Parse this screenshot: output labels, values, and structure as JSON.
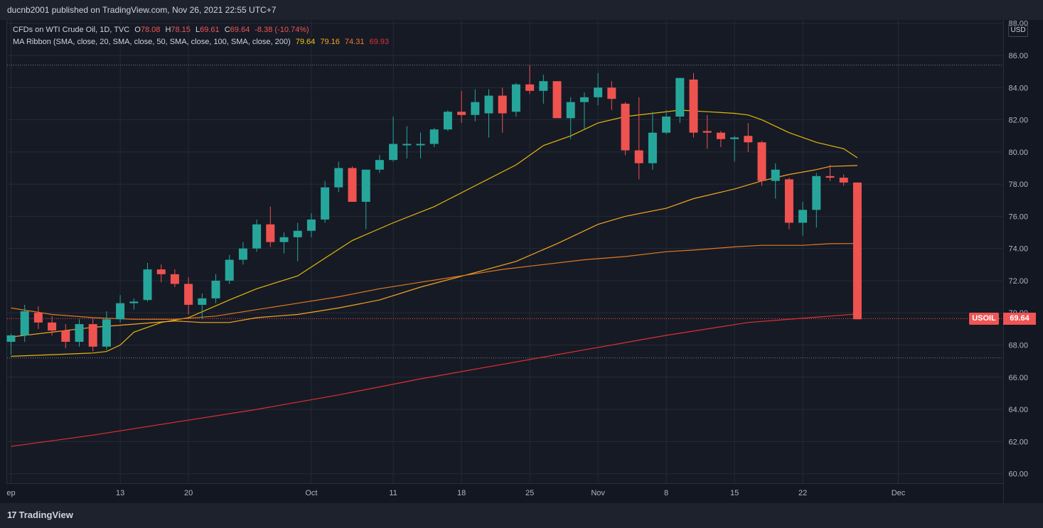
{
  "header": {
    "published_text": "ducnb2001 published on TradingView.com, Nov 26, 2021 22:55 UTC+7"
  },
  "legend": {
    "line1_name": "CFDs on WTI Crude Oil, 1D, TVC",
    "o_label": "O",
    "o_value": "78.08",
    "h_label": "H",
    "h_value": "78.15",
    "l_label": "L",
    "l_value": "69.61",
    "c_label": "C",
    "c_value": "69.64",
    "change": "-8.38 (-10.74%)",
    "line2_name": "MA Ribbon (SMA, close, 20, SMA, close, 50, SMA, close, 100, SMA, close, 200)",
    "ma20": "79.64",
    "ma50": "79.16",
    "ma100": "74.31",
    "ma200": "69.93"
  },
  "currency_label": "USD",
  "symbol_tag": "USOIL",
  "last_price_tag": "69.64",
  "footer": {
    "brand": "TradingView",
    "logo_mark": "17"
  },
  "colors": {
    "bull": "#26a69a",
    "bear": "#ef5350",
    "ma20": "#e5b80b",
    "ma50": "#f5a623",
    "ma100": "#e07a1f",
    "ma200": "#e03030",
    "background": "#161a25",
    "grid": "#262a36"
  },
  "chart_data": {
    "type": "candlestick",
    "symbol": "USOIL",
    "interval": "1D",
    "ylim": [
      59.5,
      88.5
    ],
    "y_ticks": [
      "88.00",
      "86.00",
      "84.00",
      "82.00",
      "80.00",
      "78.00",
      "76.00",
      "74.00",
      "72.00",
      "70.00",
      "68.00",
      "66.00",
      "64.00",
      "62.00",
      "60.00"
    ],
    "x_ticks": [
      {
        "label": "ep",
        "index": 0
      },
      {
        "label": "13",
        "index": 8
      },
      {
        "label": "20",
        "index": 13
      },
      {
        "label": "Oct",
        "index": 22
      },
      {
        "label": "11",
        "index": 28
      },
      {
        "label": "18",
        "index": 33
      },
      {
        "label": "25",
        "index": 38
      },
      {
        "label": "Nov",
        "index": 43
      },
      {
        "label": "8",
        "index": 48
      },
      {
        "label": "15",
        "index": 53
      },
      {
        "label": "22",
        "index": 58
      },
      {
        "label": "Dec",
        "index": 65
      }
    ],
    "candles": [
      {
        "o": 68.2,
        "h": 68.7,
        "l": 67.4,
        "c": 68.6
      },
      {
        "o": 68.6,
        "h": 70.5,
        "l": 68.2,
        "c": 70.1
      },
      {
        "o": 70.0,
        "h": 70.4,
        "l": 69.0,
        "c": 69.4
      },
      {
        "o": 69.4,
        "h": 69.8,
        "l": 68.6,
        "c": 68.9
      },
      {
        "o": 68.9,
        "h": 69.3,
        "l": 67.8,
        "c": 68.2
      },
      {
        "o": 68.2,
        "h": 69.6,
        "l": 67.9,
        "c": 69.3
      },
      {
        "o": 69.3,
        "h": 69.7,
        "l": 67.6,
        "c": 67.9
      },
      {
        "o": 67.9,
        "h": 70.1,
        "l": 67.7,
        "c": 69.6
      },
      {
        "o": 69.6,
        "h": 71.1,
        "l": 69.4,
        "c": 70.6
      },
      {
        "o": 70.6,
        "h": 70.9,
        "l": 70.2,
        "c": 70.7
      },
      {
        "o": 70.8,
        "h": 73.1,
        "l": 70.7,
        "c": 72.7
      },
      {
        "o": 72.7,
        "h": 73.0,
        "l": 71.9,
        "c": 72.4
      },
      {
        "o": 72.4,
        "h": 72.7,
        "l": 71.6,
        "c": 71.8
      },
      {
        "o": 71.8,
        "h": 72.2,
        "l": 69.9,
        "c": 70.5
      },
      {
        "o": 70.5,
        "h": 71.2,
        "l": 69.6,
        "c": 70.9
      },
      {
        "o": 70.9,
        "h": 72.4,
        "l": 70.6,
        "c": 72.0
      },
      {
        "o": 72.0,
        "h": 73.6,
        "l": 71.8,
        "c": 73.3
      },
      {
        "o": 73.3,
        "h": 74.4,
        "l": 73.0,
        "c": 74.0
      },
      {
        "o": 74.0,
        "h": 75.8,
        "l": 73.8,
        "c": 75.5
      },
      {
        "o": 75.5,
        "h": 76.6,
        "l": 74.1,
        "c": 74.4
      },
      {
        "o": 74.4,
        "h": 75.0,
        "l": 73.7,
        "c": 74.7
      },
      {
        "o": 74.7,
        "h": 75.6,
        "l": 73.2,
        "c": 75.1
      },
      {
        "o": 75.1,
        "h": 76.2,
        "l": 74.7,
        "c": 75.8
      },
      {
        "o": 75.8,
        "h": 78.2,
        "l": 75.6,
        "c": 77.8
      },
      {
        "o": 77.8,
        "h": 79.4,
        "l": 77.5,
        "c": 79.0
      },
      {
        "o": 79.0,
        "h": 79.1,
        "l": 76.9,
        "c": 76.9
      },
      {
        "o": 76.9,
        "h": 78.9,
        "l": 75.2,
        "c": 78.9
      },
      {
        "o": 78.9,
        "h": 79.8,
        "l": 78.7,
        "c": 79.5
      },
      {
        "o": 79.5,
        "h": 82.2,
        "l": 79.4,
        "c": 80.5
      },
      {
        "o": 80.5,
        "h": 81.6,
        "l": 79.6,
        "c": 80.5
      },
      {
        "o": 80.5,
        "h": 81.2,
        "l": 79.6,
        "c": 80.5
      },
      {
        "o": 80.5,
        "h": 81.5,
        "l": 80.3,
        "c": 81.4
      },
      {
        "o": 81.4,
        "h": 82.6,
        "l": 81.3,
        "c": 82.5
      },
      {
        "o": 82.5,
        "h": 83.8,
        "l": 81.8,
        "c": 82.3
      },
      {
        "o": 82.3,
        "h": 83.9,
        "l": 81.9,
        "c": 83.1
      },
      {
        "o": 82.4,
        "h": 83.9,
        "l": 80.9,
        "c": 83.5
      },
      {
        "o": 83.5,
        "h": 84.0,
        "l": 81.2,
        "c": 82.4
      },
      {
        "o": 82.5,
        "h": 84.3,
        "l": 82.2,
        "c": 84.2
      },
      {
        "o": 84.2,
        "h": 85.4,
        "l": 83.6,
        "c": 83.8
      },
      {
        "o": 83.8,
        "h": 84.8,
        "l": 83.0,
        "c": 84.4
      },
      {
        "o": 84.4,
        "h": 84.4,
        "l": 82.1,
        "c": 82.1
      },
      {
        "o": 82.1,
        "h": 83.4,
        "l": 80.8,
        "c": 83.1
      },
      {
        "o": 83.1,
        "h": 83.7,
        "l": 81.4,
        "c": 83.4
      },
      {
        "o": 83.4,
        "h": 84.9,
        "l": 82.9,
        "c": 84.0
      },
      {
        "o": 84.0,
        "h": 84.4,
        "l": 82.6,
        "c": 83.3
      },
      {
        "o": 83.0,
        "h": 83.1,
        "l": 79.8,
        "c": 80.1
      },
      {
        "o": 80.1,
        "h": 83.4,
        "l": 78.3,
        "c": 79.3
      },
      {
        "o": 79.3,
        "h": 82.5,
        "l": 78.9,
        "c": 81.2
      },
      {
        "o": 81.2,
        "h": 82.6,
        "l": 81.1,
        "c": 82.2
      },
      {
        "o": 82.2,
        "h": 84.6,
        "l": 81.8,
        "c": 84.6
      },
      {
        "o": 84.5,
        "h": 84.9,
        "l": 80.9,
        "c": 81.2
      },
      {
        "o": 81.3,
        "h": 82.3,
        "l": 80.2,
        "c": 81.2
      },
      {
        "o": 81.2,
        "h": 81.3,
        "l": 80.3,
        "c": 80.8
      },
      {
        "o": 80.8,
        "h": 81.0,
        "l": 79.4,
        "c": 80.9
      },
      {
        "o": 81.0,
        "h": 81.8,
        "l": 80.0,
        "c": 80.6
      },
      {
        "o": 80.6,
        "h": 80.7,
        "l": 77.9,
        "c": 78.2
      },
      {
        "o": 78.2,
        "h": 79.3,
        "l": 77.1,
        "c": 78.9
      },
      {
        "o": 78.3,
        "h": 78.4,
        "l": 75.2,
        "c": 75.6
      },
      {
        "o": 75.6,
        "h": 76.9,
        "l": 74.8,
        "c": 76.4
      },
      {
        "o": 76.4,
        "h": 78.7,
        "l": 75.3,
        "c": 78.5
      },
      {
        "o": 78.5,
        "h": 79.2,
        "l": 78.2,
        "c": 78.4
      },
      {
        "o": 78.4,
        "h": 78.6,
        "l": 77.9,
        "c": 78.1
      },
      {
        "o": 78.1,
        "h": 78.1,
        "l": 69.6,
        "c": 69.6
      }
    ],
    "ma_series": [
      {
        "name": "SMA 20",
        "points": [
          [
            0,
            67.3
          ],
          [
            3,
            67.4
          ],
          [
            6,
            67.5
          ],
          [
            7,
            67.6
          ],
          [
            8,
            68.0
          ],
          [
            9,
            68.8
          ],
          [
            11,
            69.4
          ],
          [
            13,
            69.7
          ],
          [
            16,
            70.8
          ],
          [
            18,
            71.5
          ],
          [
            21,
            72.3
          ],
          [
            23,
            73.4
          ],
          [
            25,
            74.5
          ],
          [
            28,
            75.6
          ],
          [
            31,
            76.6
          ],
          [
            34,
            77.9
          ],
          [
            37,
            79.2
          ],
          [
            39,
            80.4
          ],
          [
            41,
            81.0
          ],
          [
            43,
            81.8
          ],
          [
            45,
            82.2
          ],
          [
            47,
            82.4
          ],
          [
            49,
            82.6
          ],
          [
            51,
            82.5
          ],
          [
            53,
            82.4
          ],
          [
            54,
            82.3
          ],
          [
            55,
            82.0
          ],
          [
            57,
            81.2
          ],
          [
            59,
            80.6
          ],
          [
            61,
            80.2
          ],
          [
            62,
            79.64
          ]
        ]
      },
      {
        "name": "SMA 50",
        "points": [
          [
            0,
            68.5
          ],
          [
            3,
            68.8
          ],
          [
            6,
            69.1
          ],
          [
            9,
            69.3
          ],
          [
            12,
            69.5
          ],
          [
            14,
            69.4
          ],
          [
            16,
            69.4
          ],
          [
            18,
            69.7
          ],
          [
            21,
            69.9
          ],
          [
            24,
            70.3
          ],
          [
            27,
            70.8
          ],
          [
            30,
            71.6
          ],
          [
            34,
            72.5
          ],
          [
            37,
            73.2
          ],
          [
            40,
            74.3
          ],
          [
            43,
            75.5
          ],
          [
            45,
            76.0
          ],
          [
            48,
            76.5
          ],
          [
            50,
            77.1
          ],
          [
            53,
            77.7
          ],
          [
            55,
            78.2
          ],
          [
            57,
            78.6
          ],
          [
            59,
            78.9
          ],
          [
            60,
            79.1
          ],
          [
            62,
            79.16
          ]
        ]
      },
      {
        "name": "SMA 100",
        "points": [
          [
            0,
            70.3
          ],
          [
            3,
            69.9
          ],
          [
            6,
            69.7
          ],
          [
            9,
            69.6
          ],
          [
            12,
            69.6
          ],
          [
            15,
            69.8
          ],
          [
            18,
            70.2
          ],
          [
            21,
            70.6
          ],
          [
            24,
            71.0
          ],
          [
            27,
            71.5
          ],
          [
            30,
            71.9
          ],
          [
            33,
            72.3
          ],
          [
            36,
            72.7
          ],
          [
            39,
            73.0
          ],
          [
            42,
            73.3
          ],
          [
            45,
            73.5
          ],
          [
            48,
            73.8
          ],
          [
            50,
            73.9
          ],
          [
            53,
            74.1
          ],
          [
            55,
            74.2
          ],
          [
            58,
            74.2
          ],
          [
            60,
            74.3
          ],
          [
            62,
            74.31
          ]
        ]
      },
      {
        "name": "SMA 200",
        "points": [
          [
            0,
            61.7
          ],
          [
            6,
            62.4
          ],
          [
            12,
            63.2
          ],
          [
            18,
            64.0
          ],
          [
            24,
            64.9
          ],
          [
            30,
            65.9
          ],
          [
            36,
            66.8
          ],
          [
            42,
            67.7
          ],
          [
            48,
            68.6
          ],
          [
            54,
            69.4
          ],
          [
            62,
            69.93
          ]
        ]
      }
    ],
    "reference_lines": [
      85.4,
      67.2
    ],
    "last_price": 69.64
  }
}
